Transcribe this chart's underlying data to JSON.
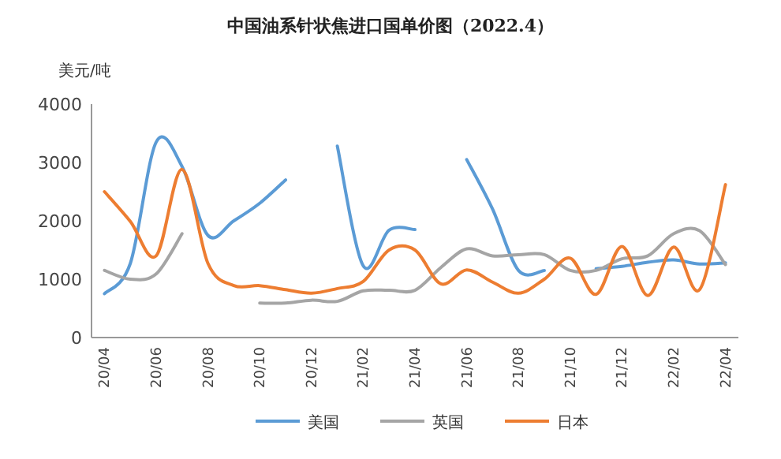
{
  "chart_data": {
    "type": "line",
    "title": "中国油系针状焦进口国单价图（2022.4）",
    "ylabel": "美元/吨",
    "categories": [
      "20/04",
      null,
      "20/06",
      null,
      "20/08",
      null,
      "20/10",
      null,
      "20/12",
      null,
      "21/02",
      null,
      "21/04",
      null,
      "21/06",
      null,
      "21/08",
      null,
      "21/10",
      null,
      "21/12",
      null,
      "22/02",
      null,
      "22/04"
    ],
    "ylim": [
      0,
      4000
    ],
    "yticks": [
      0,
      1000,
      2000,
      3000,
      4000
    ],
    "grid": false,
    "legend": "bottom",
    "marker": "none",
    "line_style": "solid",
    "series": [
      {
        "name": "美国",
        "color": "#5b9bd5",
        "values": [
          750,
          1270,
          3350,
          2930,
          1750,
          2000,
          2300,
          2700,
          null,
          3280,
          1230,
          1840,
          1850,
          null,
          3050,
          2200,
          1150,
          1150,
          null,
          1180,
          1220,
          1290,
          1330,
          1260,
          1280
        ]
      },
      {
        "name": "英国",
        "color": "#a5a5a5",
        "values": [
          1150,
          1000,
          1090,
          1780,
          null,
          null,
          590,
          590,
          640,
          620,
          800,
          810,
          810,
          1200,
          1520,
          1400,
          1420,
          1420,
          1150,
          1150,
          1350,
          1400,
          1780,
          1830,
          1250
        ]
      },
      {
        "name": "日本",
        "color": "#ed7d31",
        "values": [
          2500,
          1990,
          1400,
          2880,
          1270,
          890,
          890,
          820,
          760,
          840,
          960,
          1500,
          1500,
          920,
          1160,
          950,
          760,
          1000,
          1360,
          740,
          1560,
          720,
          1550,
          820,
          2620
        ]
      }
    ]
  }
}
